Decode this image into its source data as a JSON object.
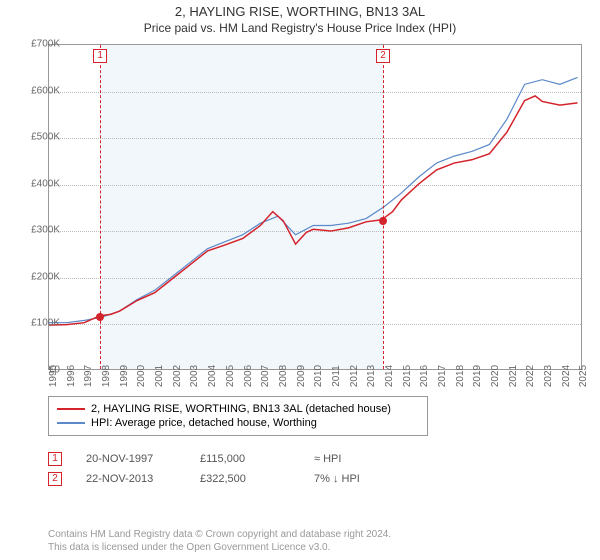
{
  "title_line1": "2, HAYLING RISE, WORTHING, BN13 3AL",
  "title_line2": "Price paid vs. HM Land Registry's House Price Index (HPI)",
  "chart": {
    "type": "line",
    "background_color": "#ffffff",
    "grid_color": "#bbbbbb",
    "border_color": "#999999",
    "shade_color": "#e8f0f8",
    "x": {
      "min": 1995,
      "max": 2025.2,
      "ticks": [
        1995,
        1996,
        1997,
        1998,
        1999,
        2000,
        2001,
        2002,
        2003,
        2004,
        2005,
        2006,
        2007,
        2008,
        2009,
        2010,
        2011,
        2012,
        2013,
        2014,
        2015,
        2016,
        2017,
        2018,
        2019,
        2020,
        2021,
        2022,
        2023,
        2024,
        2025
      ]
    },
    "y": {
      "min": 0,
      "max": 700000,
      "tick_step": 100000,
      "labels": [
        "£0",
        "£100K",
        "£200K",
        "£300K",
        "£400K",
        "£500K",
        "£600K",
        "£700K"
      ]
    },
    "series": [
      {
        "name": "hpi",
        "label": "HPI: Average price, detached house, Worthing",
        "color": "#5b89c9",
        "width": 1.2,
        "points": [
          [
            1995,
            100000
          ],
          [
            1996,
            100000
          ],
          [
            1997,
            105000
          ],
          [
            1998,
            112000
          ],
          [
            1999,
            125000
          ],
          [
            2000,
            150000
          ],
          [
            2001,
            170000
          ],
          [
            2002,
            200000
          ],
          [
            2003,
            230000
          ],
          [
            2004,
            260000
          ],
          [
            2005,
            275000
          ],
          [
            2006,
            290000
          ],
          [
            2007,
            315000
          ],
          [
            2008,
            330000
          ],
          [
            2009,
            290000
          ],
          [
            2010,
            310000
          ],
          [
            2011,
            310000
          ],
          [
            2012,
            315000
          ],
          [
            2013,
            325000
          ],
          [
            2014,
            350000
          ],
          [
            2015,
            380000
          ],
          [
            2016,
            415000
          ],
          [
            2017,
            445000
          ],
          [
            2018,
            460000
          ],
          [
            2019,
            470000
          ],
          [
            2020,
            485000
          ],
          [
            2021,
            540000
          ],
          [
            2022,
            615000
          ],
          [
            2023,
            625000
          ],
          [
            2024,
            615000
          ],
          [
            2025,
            630000
          ]
        ]
      },
      {
        "name": "property",
        "label": "2, HAYLING RISE, WORTHING, BN13 3AL (detached house)",
        "color": "#d4232b",
        "width": 1.5,
        "points": [
          [
            1995,
            95000
          ],
          [
            1996,
            96000
          ],
          [
            1997,
            100000
          ],
          [
            1997.89,
            115000
          ],
          [
            1998.5,
            118000
          ],
          [
            1999,
            125000
          ],
          [
            2000,
            148000
          ],
          [
            2001,
            165000
          ],
          [
            2002,
            195000
          ],
          [
            2003,
            225000
          ],
          [
            2004,
            255000
          ],
          [
            2005,
            268000
          ],
          [
            2006,
            282000
          ],
          [
            2007,
            310000
          ],
          [
            2007.7,
            340000
          ],
          [
            2008.3,
            320000
          ],
          [
            2009,
            270000
          ],
          [
            2009.6,
            295000
          ],
          [
            2010,
            302000
          ],
          [
            2011,
            298000
          ],
          [
            2012,
            305000
          ],
          [
            2013,
            318000
          ],
          [
            2013.89,
            322500
          ],
          [
            2014.5,
            340000
          ],
          [
            2015,
            365000
          ],
          [
            2016,
            400000
          ],
          [
            2017,
            430000
          ],
          [
            2018,
            445000
          ],
          [
            2019,
            452000
          ],
          [
            2020,
            465000
          ],
          [
            2021,
            512000
          ],
          [
            2022,
            580000
          ],
          [
            2022.6,
            590000
          ],
          [
            2023,
            578000
          ],
          [
            2024,
            570000
          ],
          [
            2025,
            575000
          ]
        ]
      }
    ],
    "markers": [
      {
        "n": "1",
        "x": 1997.89,
        "y": 115000,
        "color": "#d4232b"
      },
      {
        "n": "2",
        "x": 2013.89,
        "y": 322500,
        "color": "#d4232b"
      }
    ]
  },
  "legend": {
    "items": [
      {
        "color": "#d4232b",
        "label": "2, HAYLING RISE, WORTHING, BN13 3AL (detached house)"
      },
      {
        "color": "#5b89c9",
        "label": "HPI: Average price, detached house, Worthing"
      }
    ]
  },
  "data_rows": [
    {
      "n": "1",
      "color": "#d4232b",
      "date": "20-NOV-1997",
      "price": "£115,000",
      "delta": "≈ HPI"
    },
    {
      "n": "2",
      "color": "#d4232b",
      "date": "22-NOV-2013",
      "price": "£322,500",
      "delta": "7% ↓ HPI"
    }
  ],
  "attribution_line1": "Contains HM Land Registry data © Crown copyright and database right 2024.",
  "attribution_line2": "This data is licensed under the Open Government Licence v3.0."
}
